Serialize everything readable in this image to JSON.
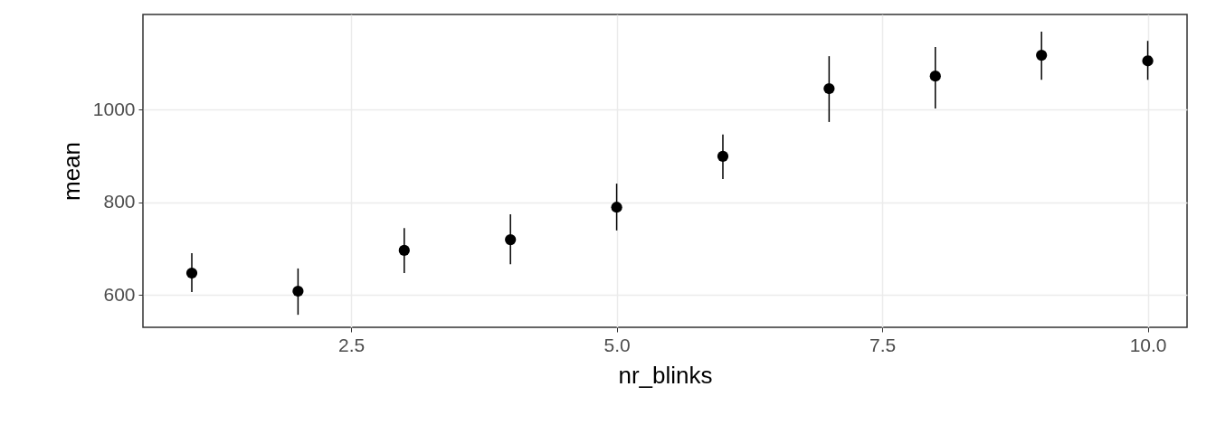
{
  "chart_data": {
    "type": "scatter",
    "xlabel": "nr_blinks",
    "ylabel": "mean",
    "x": [
      1,
      2,
      3,
      4,
      5,
      6,
      7,
      8,
      9,
      10
    ],
    "series": [
      {
        "color": "#000000",
        "values": [
          647,
          608,
          696,
          719,
          789,
          899,
          1045,
          1072,
          1117,
          1105
        ],
        "errors": [
          [
            606,
            690
          ],
          [
            557,
            657
          ],
          [
            647,
            744
          ],
          [
            666,
            774
          ],
          [
            739,
            840
          ],
          [
            850,
            946
          ],
          [
            973,
            1115
          ],
          [
            1002,
            1135
          ],
          [
            1064,
            1168
          ],
          [
            1064,
            1148
          ]
        ]
      }
    ],
    "xlim": [
      0.54,
      10.37
    ],
    "xticks": [
      2.5,
      {
        "value": 5,
        "label": "5.0"
      },
      7.5,
      {
        "value": 10,
        "label": "10.0"
      }
    ],
    "ylim": [
      530,
      1205
    ],
    "yticks": [
      600,
      800,
      1000
    ],
    "grid": true,
    "marker": "circle"
  }
}
